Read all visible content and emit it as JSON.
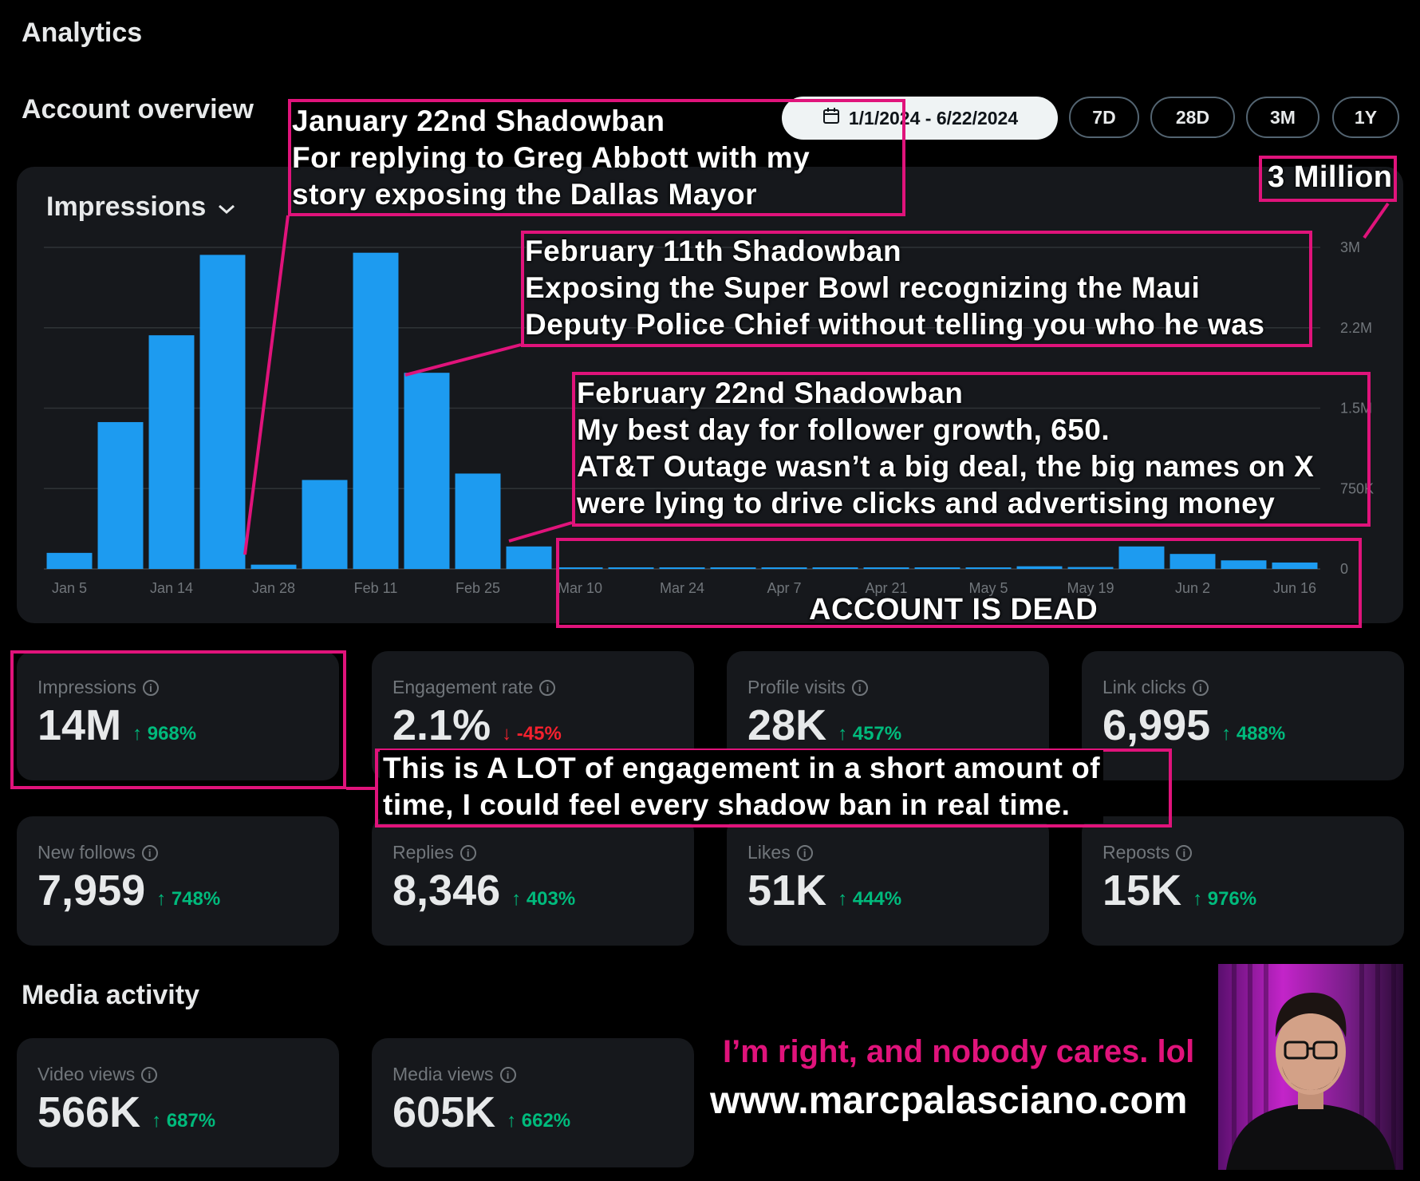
{
  "header": {
    "title": "Analytics"
  },
  "account_overview": {
    "title": "Account overview",
    "date_range": "1/1/2024 - 6/22/2024",
    "range_buttons": [
      "7D",
      "28D",
      "3M",
      "1Y"
    ]
  },
  "chart_card": {
    "metric_selector": "Impressions"
  },
  "chart_data": {
    "type": "bar",
    "metric": "Impressions",
    "x_tick_labels": [
      "Jan 5",
      "Jan 14",
      "Jan 28",
      "Feb 11",
      "Feb 25",
      "Mar 10",
      "Mar 24",
      "Apr 7",
      "Apr 21",
      "May 5",
      "May 19",
      "Jun 2",
      "Jun 16"
    ],
    "y_tick_labels": [
      "0",
      "750K",
      "1.5M",
      "2.2M",
      "3M"
    ],
    "ylim": [
      0,
      3000000
    ],
    "grid": true,
    "values": [
      150000,
      1370000,
      2180000,
      2930000,
      40000,
      830000,
      2950000,
      1830000,
      890000,
      210000,
      15000,
      5000,
      3000,
      2000,
      3000,
      6000,
      4000,
      10000,
      8000,
      25000,
      18000,
      210000,
      140000,
      80000,
      60000
    ]
  },
  "metrics": [
    {
      "label": "Impressions",
      "value": "14M",
      "delta": "968%",
      "direction": "up"
    },
    {
      "label": "Engagement rate",
      "value": "2.1%",
      "delta": "-45%",
      "direction": "down"
    },
    {
      "label": "Profile visits",
      "value": "28K",
      "delta": "457%",
      "direction": "up"
    },
    {
      "label": "Link clicks",
      "value": "6,995",
      "delta": "488%",
      "direction": "up"
    },
    {
      "label": "New follows",
      "value": "7,959",
      "delta": "748%",
      "direction": "up"
    },
    {
      "label": "Replies",
      "value": "8,346",
      "delta": "403%",
      "direction": "up"
    },
    {
      "label": "Likes",
      "value": "51K",
      "delta": "444%",
      "direction": "up"
    },
    {
      "label": "Reposts",
      "value": "15K",
      "delta": "976%",
      "direction": "up"
    }
  ],
  "media_activity": {
    "title": "Media activity",
    "metrics": [
      {
        "label": "Video views",
        "value": "566K",
        "delta": "687%",
        "direction": "up"
      },
      {
        "label": "Media views",
        "value": "605K",
        "delta": "662%",
        "direction": "up"
      }
    ]
  },
  "annotations": {
    "jan22": [
      "January 22nd Shadowban",
      "For replying to Greg Abbott with my",
      "story exposing the Dallas Mayor"
    ],
    "three_million": "3 Million",
    "feb11": [
      "February 11th Shadowban",
      "Exposing the Super Bowl recognizing the Maui",
      "Deputy Police Chief without telling you who he was"
    ],
    "feb22": [
      "February 22nd Shadowban",
      "My best day for follower growth, 650.",
      "AT&T Outage wasn’t a big deal, the big names on X",
      "were lying to drive clicks and advertising money"
    ],
    "dead": "ACCOUNT IS DEAD",
    "engagement": [
      "This is A LOT of engagement in a short amount of",
      "time, I could feel every shadow ban in real time."
    ],
    "tagline": "I’m right, and nobody cares. lol",
    "website": "www.marcpalasciano.com"
  },
  "colors": {
    "bar": "#1d9bf0",
    "annotation": "#e0137b",
    "up": "#00ba7c",
    "down": "#f4212e"
  }
}
